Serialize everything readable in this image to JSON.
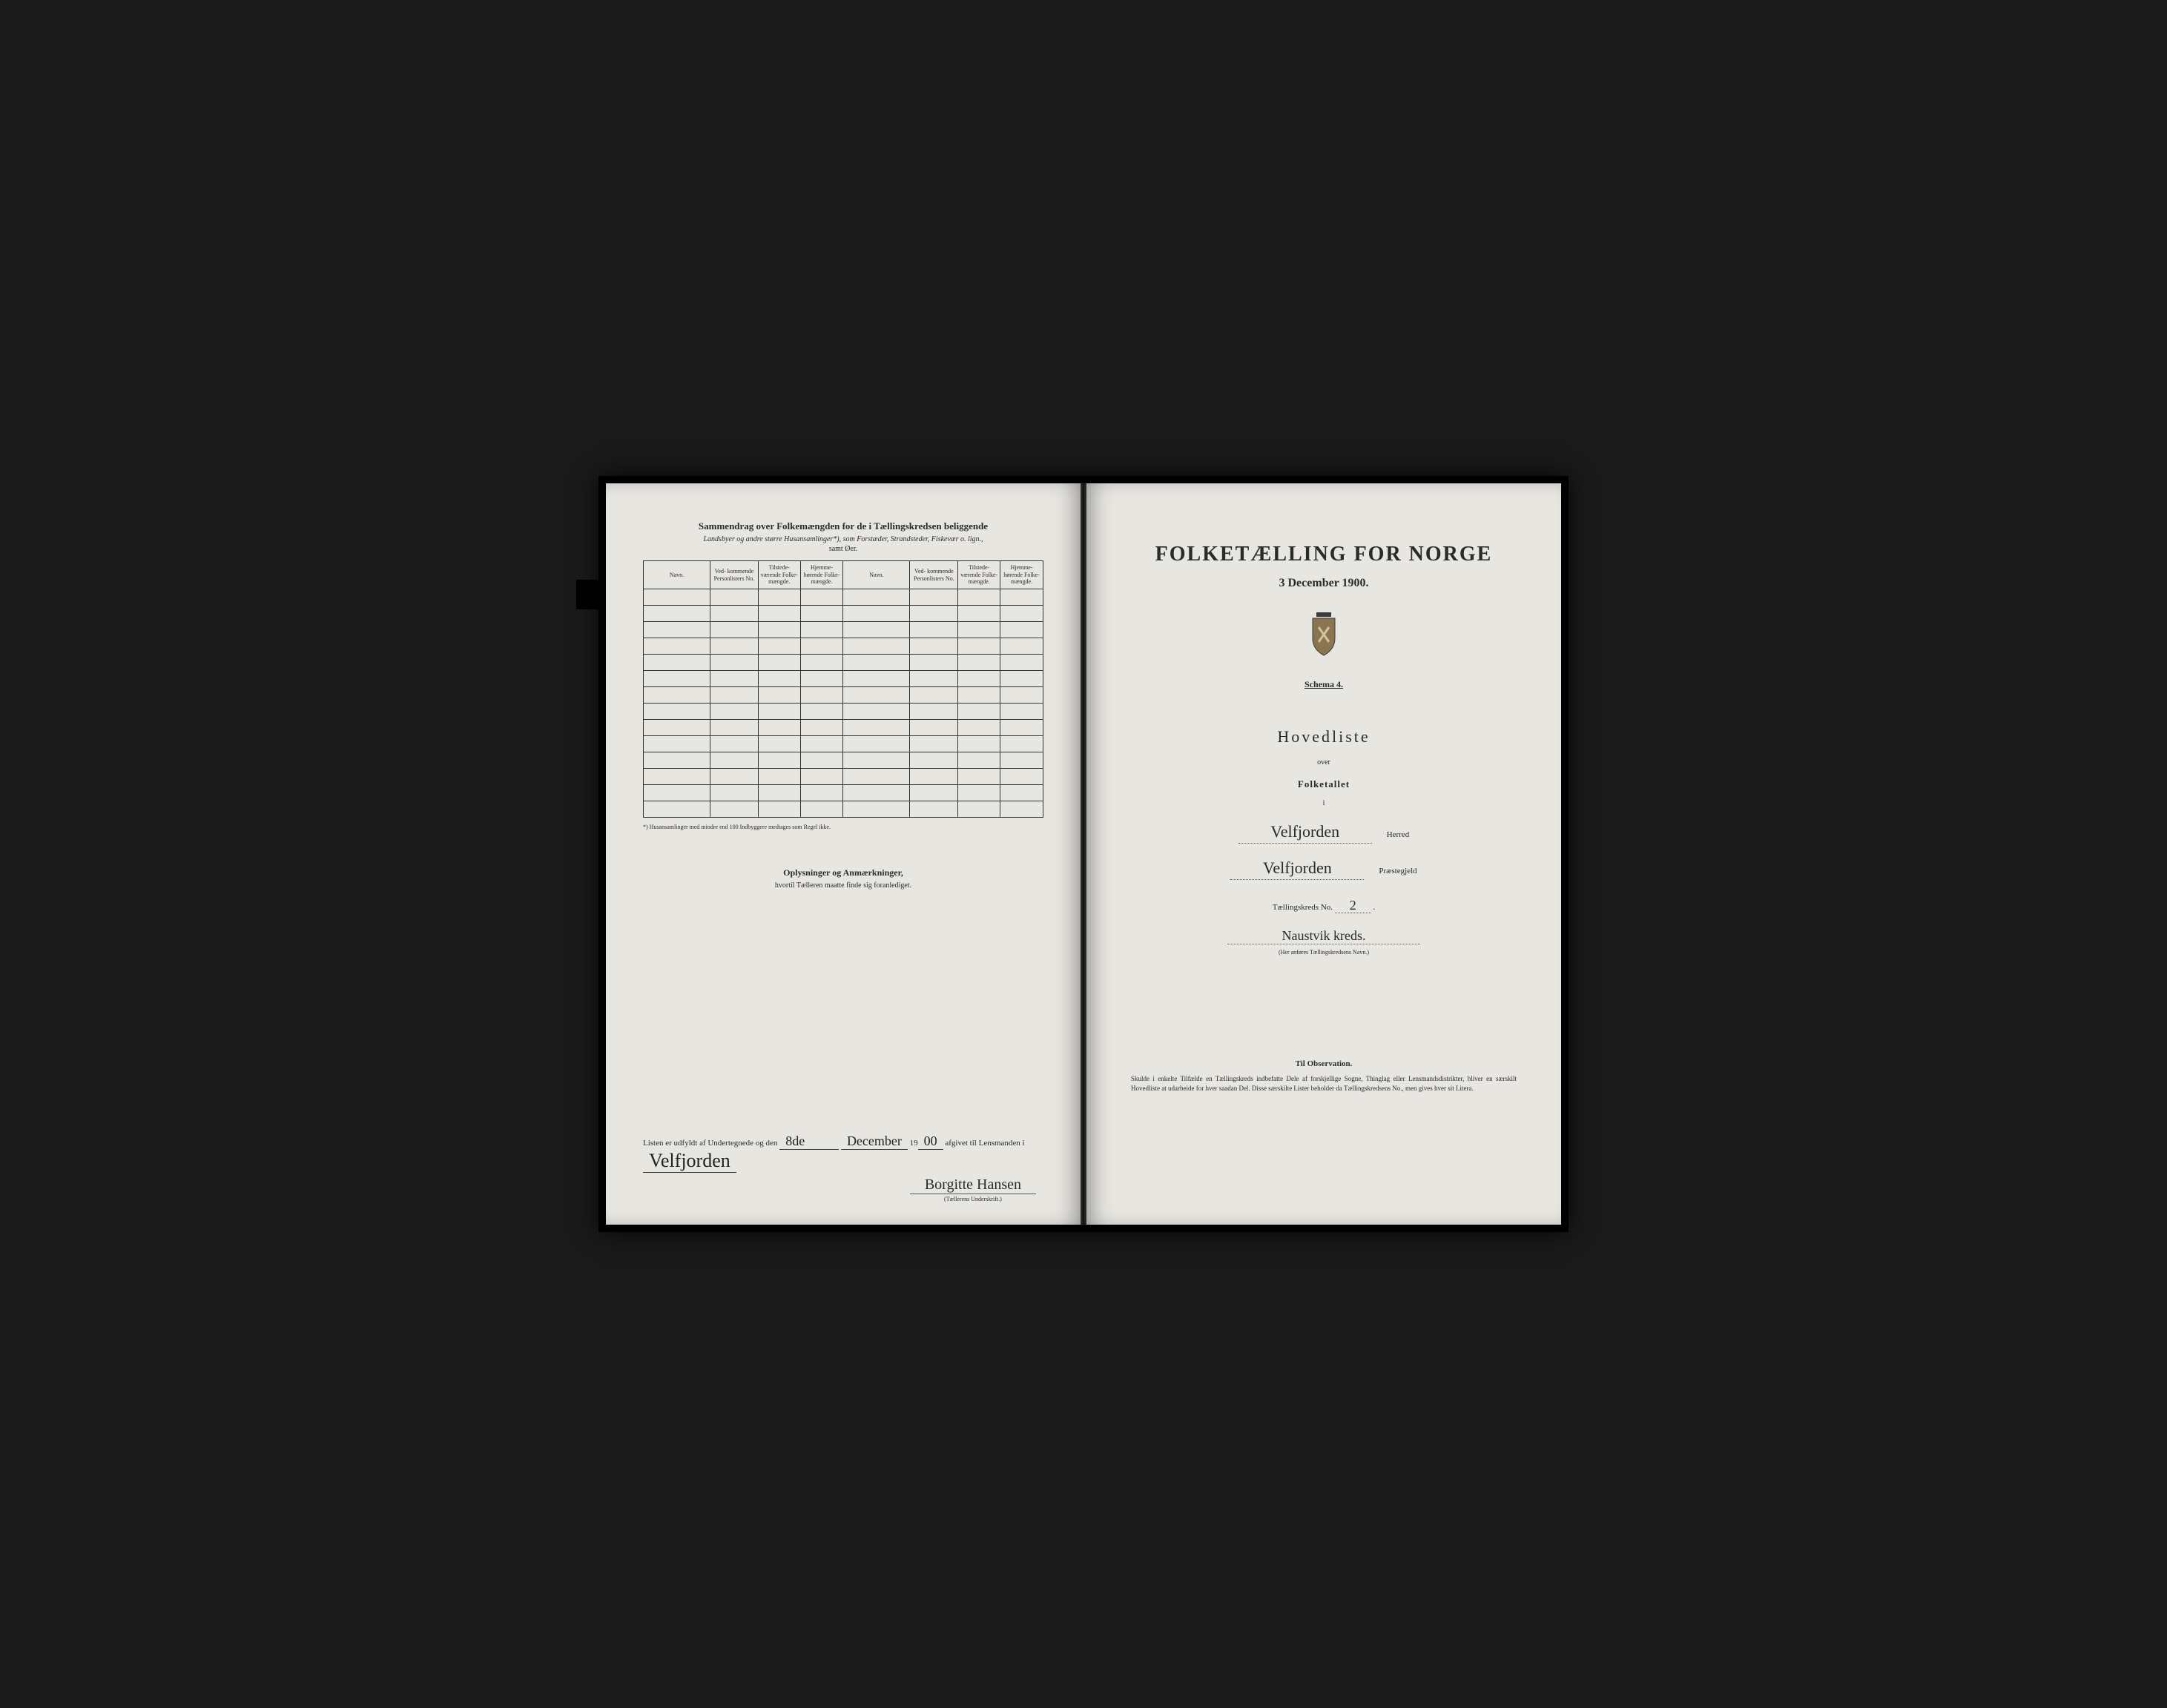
{
  "left": {
    "summary_title": "Sammendrag over Folkemængden for de i Tællingskredsen beliggende",
    "summary_subtitle": "Landsbyer og andre større Husansamlinger*), som Forstæder, Strandsteder, Fiskevær o. lign.,",
    "summary_samt": "samt Øer.",
    "columns": [
      "Navn.",
      "Ved-\nkommende\nPersonlisters\nNo.",
      "Tilstede-\nværende\nFolke-\nmængde.",
      "Hjemme-\nhørende\nFolke-\nmængde.",
      "Navn.",
      "Ved-\nkommende\nPersonlisters\nNo.",
      "Tilstede-\nværende\nFolke-\nmængde.",
      "Hjemme-\nhørende\nFolke-\nmængde."
    ],
    "row_count": 14,
    "footnote": "*) Husansamlinger med mindre end 100 Indbyggere medtages som Regel ikke.",
    "oplysninger_title": "Oplysninger og Anmærkninger,",
    "oplysninger_sub": "hvortil Tælleren maatte finde sig foranlediget.",
    "listen_prefix": "Listen er udfyldt af Undertegnede og den",
    "listen_day": "8de",
    "listen_month": "December",
    "listen_year_prefix": "19",
    "listen_year": "00",
    "listen_suffix": "afgivet til Lensmanden i",
    "listen_place": "Velfjorden",
    "signature": "Borgitte Hansen",
    "sig_label": "(Tællerens Underskrift.)"
  },
  "right": {
    "main_title": "FOLKETÆLLING FOR NORGE",
    "main_date": "3 December 1900.",
    "schema": "Schema 4.",
    "hovedliste": "Hovedliste",
    "over": "over",
    "folketallet": "Folketallet",
    "ii": "i",
    "herred_value": "Velfjorden",
    "herred_label": "Herred",
    "praestegjeld_value": "Velfjorden",
    "praestegjeld_label": "Præstegjeld",
    "kreds_no_label": "Tællingskreds No.",
    "kreds_no_value": "2",
    "kreds_name": "Naustvik kreds.",
    "her_anfores": "(Her anføres Tællingskredsens Navn.)",
    "observation_title": "Til Observation.",
    "observation_text": "Skulde i enkelte Tilfælde en Tællingskreds indbefatte Dele af forskjellige Sogne, Thinglag eller Lensmandsdistrikter, bliver en særskilt Hovedliste at udarbeide for hver saadan Del. Disse særskilte Lister beholder da Tællingskredsens No., men gives hver sit Litera."
  },
  "colors": {
    "page_bg": "#e8e6e0",
    "text": "#2a2a2a",
    "border": "#333333",
    "crest_shield": "#8a7550",
    "crest_crown": "#3a3a3a"
  }
}
